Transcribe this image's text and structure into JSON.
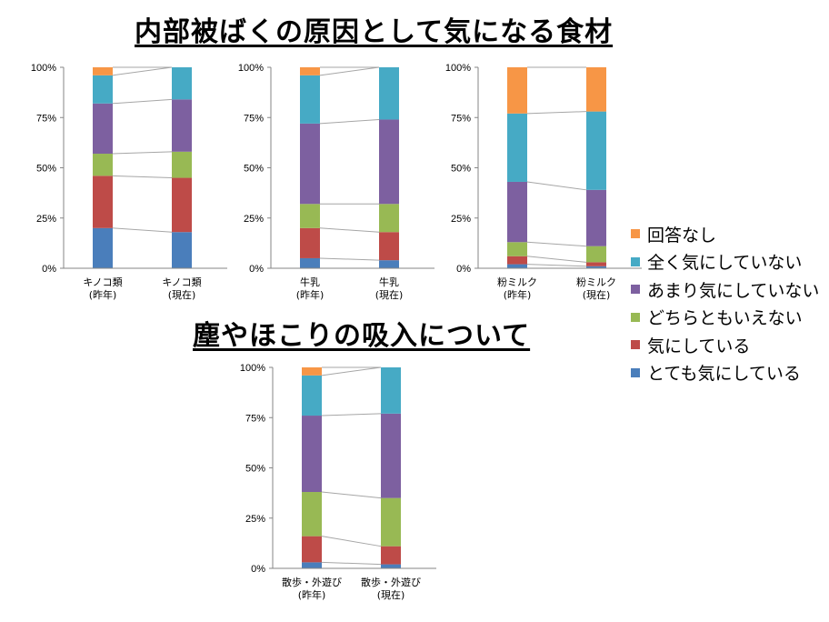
{
  "titles": {
    "main": "内部被ばくの原因として気になる食材",
    "sub": "塵やほこりの吸入について"
  },
  "colors": {
    "とても気にしている": "#4a7ebb",
    "気にしている": "#be4b48",
    "どちらともいえない": "#98b954",
    "あまり気にしていない": "#7d60a0",
    "全く気にしていない": "#46aac5",
    "回答なし": "#f79646"
  },
  "legend": [
    "回答なし",
    "全く気にしていない",
    "あまり気にしていない",
    "どちらともいえない",
    "気にしている",
    "とても気にしている"
  ],
  "chart_data": [
    {
      "type": "bar",
      "stacked": "percent",
      "y_ticks": [
        "0%",
        "25%",
        "50%",
        "75%",
        "100%"
      ],
      "ylim": [
        0,
        100
      ],
      "categories": [
        [
          "キノコ類",
          "(昨年)"
        ],
        [
          "キノコ類",
          "(現在)"
        ]
      ],
      "series": [
        {
          "name": "とても気にしている",
          "values": [
            20,
            18
          ]
        },
        {
          "name": "気にしている",
          "values": [
            26,
            27
          ]
        },
        {
          "name": "どちらともいえない",
          "values": [
            11,
            13
          ]
        },
        {
          "name": "あまり気にしていない",
          "values": [
            25,
            26
          ]
        },
        {
          "name": "全く気にしていない",
          "values": [
            14,
            16
          ]
        },
        {
          "name": "回答なし",
          "values": [
            4,
            0
          ]
        }
      ]
    },
    {
      "type": "bar",
      "stacked": "percent",
      "y_ticks": [
        "0%",
        "25%",
        "50%",
        "75%",
        "100%"
      ],
      "ylim": [
        0,
        100
      ],
      "categories": [
        [
          "牛乳",
          "(昨年)"
        ],
        [
          "牛乳",
          "(現在)"
        ]
      ],
      "series": [
        {
          "name": "とても気にしている",
          "values": [
            5,
            4
          ]
        },
        {
          "name": "気にしている",
          "values": [
            15,
            14
          ]
        },
        {
          "name": "どちらともいえない",
          "values": [
            12,
            14
          ]
        },
        {
          "name": "あまり気にしていない",
          "values": [
            40,
            42
          ]
        },
        {
          "name": "全く気にしていない",
          "values": [
            24,
            26
          ]
        },
        {
          "name": "回答なし",
          "values": [
            4,
            0
          ]
        }
      ]
    },
    {
      "type": "bar",
      "stacked": "percent",
      "y_ticks": [
        "0%",
        "25%",
        "50%",
        "75%",
        "100%"
      ],
      "ylim": [
        0,
        100
      ],
      "categories": [
        [
          "粉ミルク",
          "(昨年)"
        ],
        [
          "粉ミルク",
          "(現在)"
        ]
      ],
      "series": [
        {
          "name": "とても気にしている",
          "values": [
            2,
            1
          ]
        },
        {
          "name": "気にしている",
          "values": [
            4,
            2
          ]
        },
        {
          "name": "どちらともいえない",
          "values": [
            7,
            8
          ]
        },
        {
          "name": "あまり気にしていない",
          "values": [
            30,
            28
          ]
        },
        {
          "name": "全く気にしていない",
          "values": [
            34,
            39
          ]
        },
        {
          "name": "回答なし",
          "values": [
            23,
            22
          ]
        }
      ]
    },
    {
      "type": "bar",
      "stacked": "percent",
      "y_ticks": [
        "0%",
        "25%",
        "50%",
        "75%",
        "100%"
      ],
      "ylim": [
        0,
        100
      ],
      "categories": [
        [
          "散歩・外遊び",
          "(昨年)"
        ],
        [
          "散歩・外遊び",
          "(現在)"
        ]
      ],
      "series": [
        {
          "name": "とても気にしている",
          "values": [
            3,
            2
          ]
        },
        {
          "name": "気にしている",
          "values": [
            13,
            9
          ]
        },
        {
          "name": "どちらともいえない",
          "values": [
            22,
            24
          ]
        },
        {
          "name": "あまり気にしていない",
          "values": [
            38,
            42
          ]
        },
        {
          "name": "全く気にしていない",
          "values": [
            20,
            23
          ]
        },
        {
          "name": "回答なし",
          "values": [
            4,
            0
          ]
        }
      ]
    }
  ]
}
